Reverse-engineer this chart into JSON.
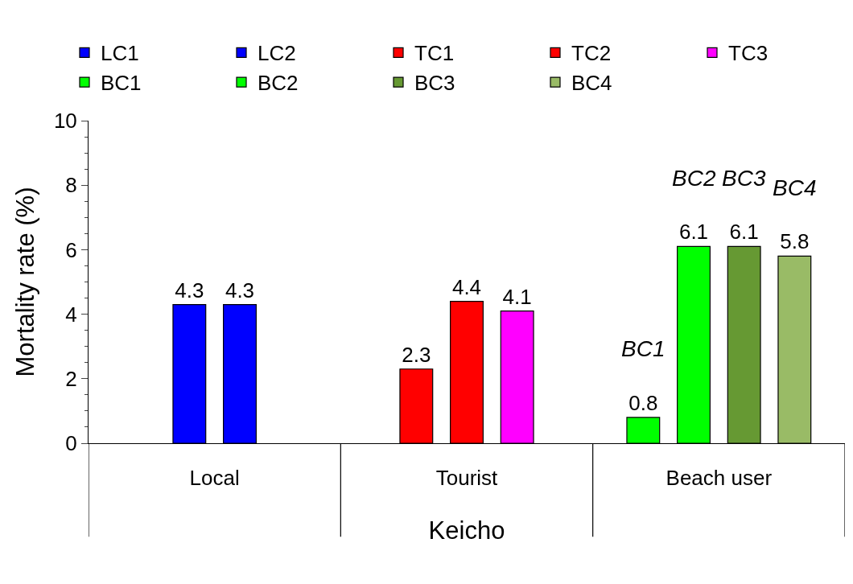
{
  "chart_data": {
    "type": "bar",
    "xlabel": "Keicho",
    "ylabel": "Mortality rate (%)",
    "categories": [
      "Local",
      "Tourist",
      "Beach user"
    ],
    "series": [
      {
        "name": "LC1",
        "color": "#0000ff",
        "values": [
          4.3,
          null,
          null
        ]
      },
      {
        "name": "LC2",
        "color": "#0000ff",
        "values": [
          4.3,
          null,
          null
        ]
      },
      {
        "name": "TC1",
        "color": "#ff0000",
        "values": [
          null,
          2.3,
          null
        ]
      },
      {
        "name": "TC2",
        "color": "#ff0000",
        "values": [
          null,
          4.4,
          null
        ]
      },
      {
        "name": "TC3",
        "color": "#ff00ff",
        "values": [
          null,
          4.1,
          null
        ]
      },
      {
        "name": "BC1",
        "color": "#00ff00",
        "values": [
          null,
          null,
          0.8
        ]
      },
      {
        "name": "BC2",
        "color": "#00ff00",
        "values": [
          null,
          null,
          6.1
        ]
      },
      {
        "name": "BC3",
        "color": "#669933",
        "values": [
          null,
          null,
          6.1
        ]
      },
      {
        "name": "BC4",
        "color": "#99bb66",
        "values": [
          null,
          null,
          5.8
        ]
      }
    ],
    "annotations": [
      "BC1",
      "BC2",
      "BC3",
      "BC4"
    ],
    "ylim": [
      0,
      10
    ],
    "yticks": [
      0,
      2,
      4,
      6,
      8,
      10
    ],
    "legend": "top",
    "data_labels": true
  }
}
